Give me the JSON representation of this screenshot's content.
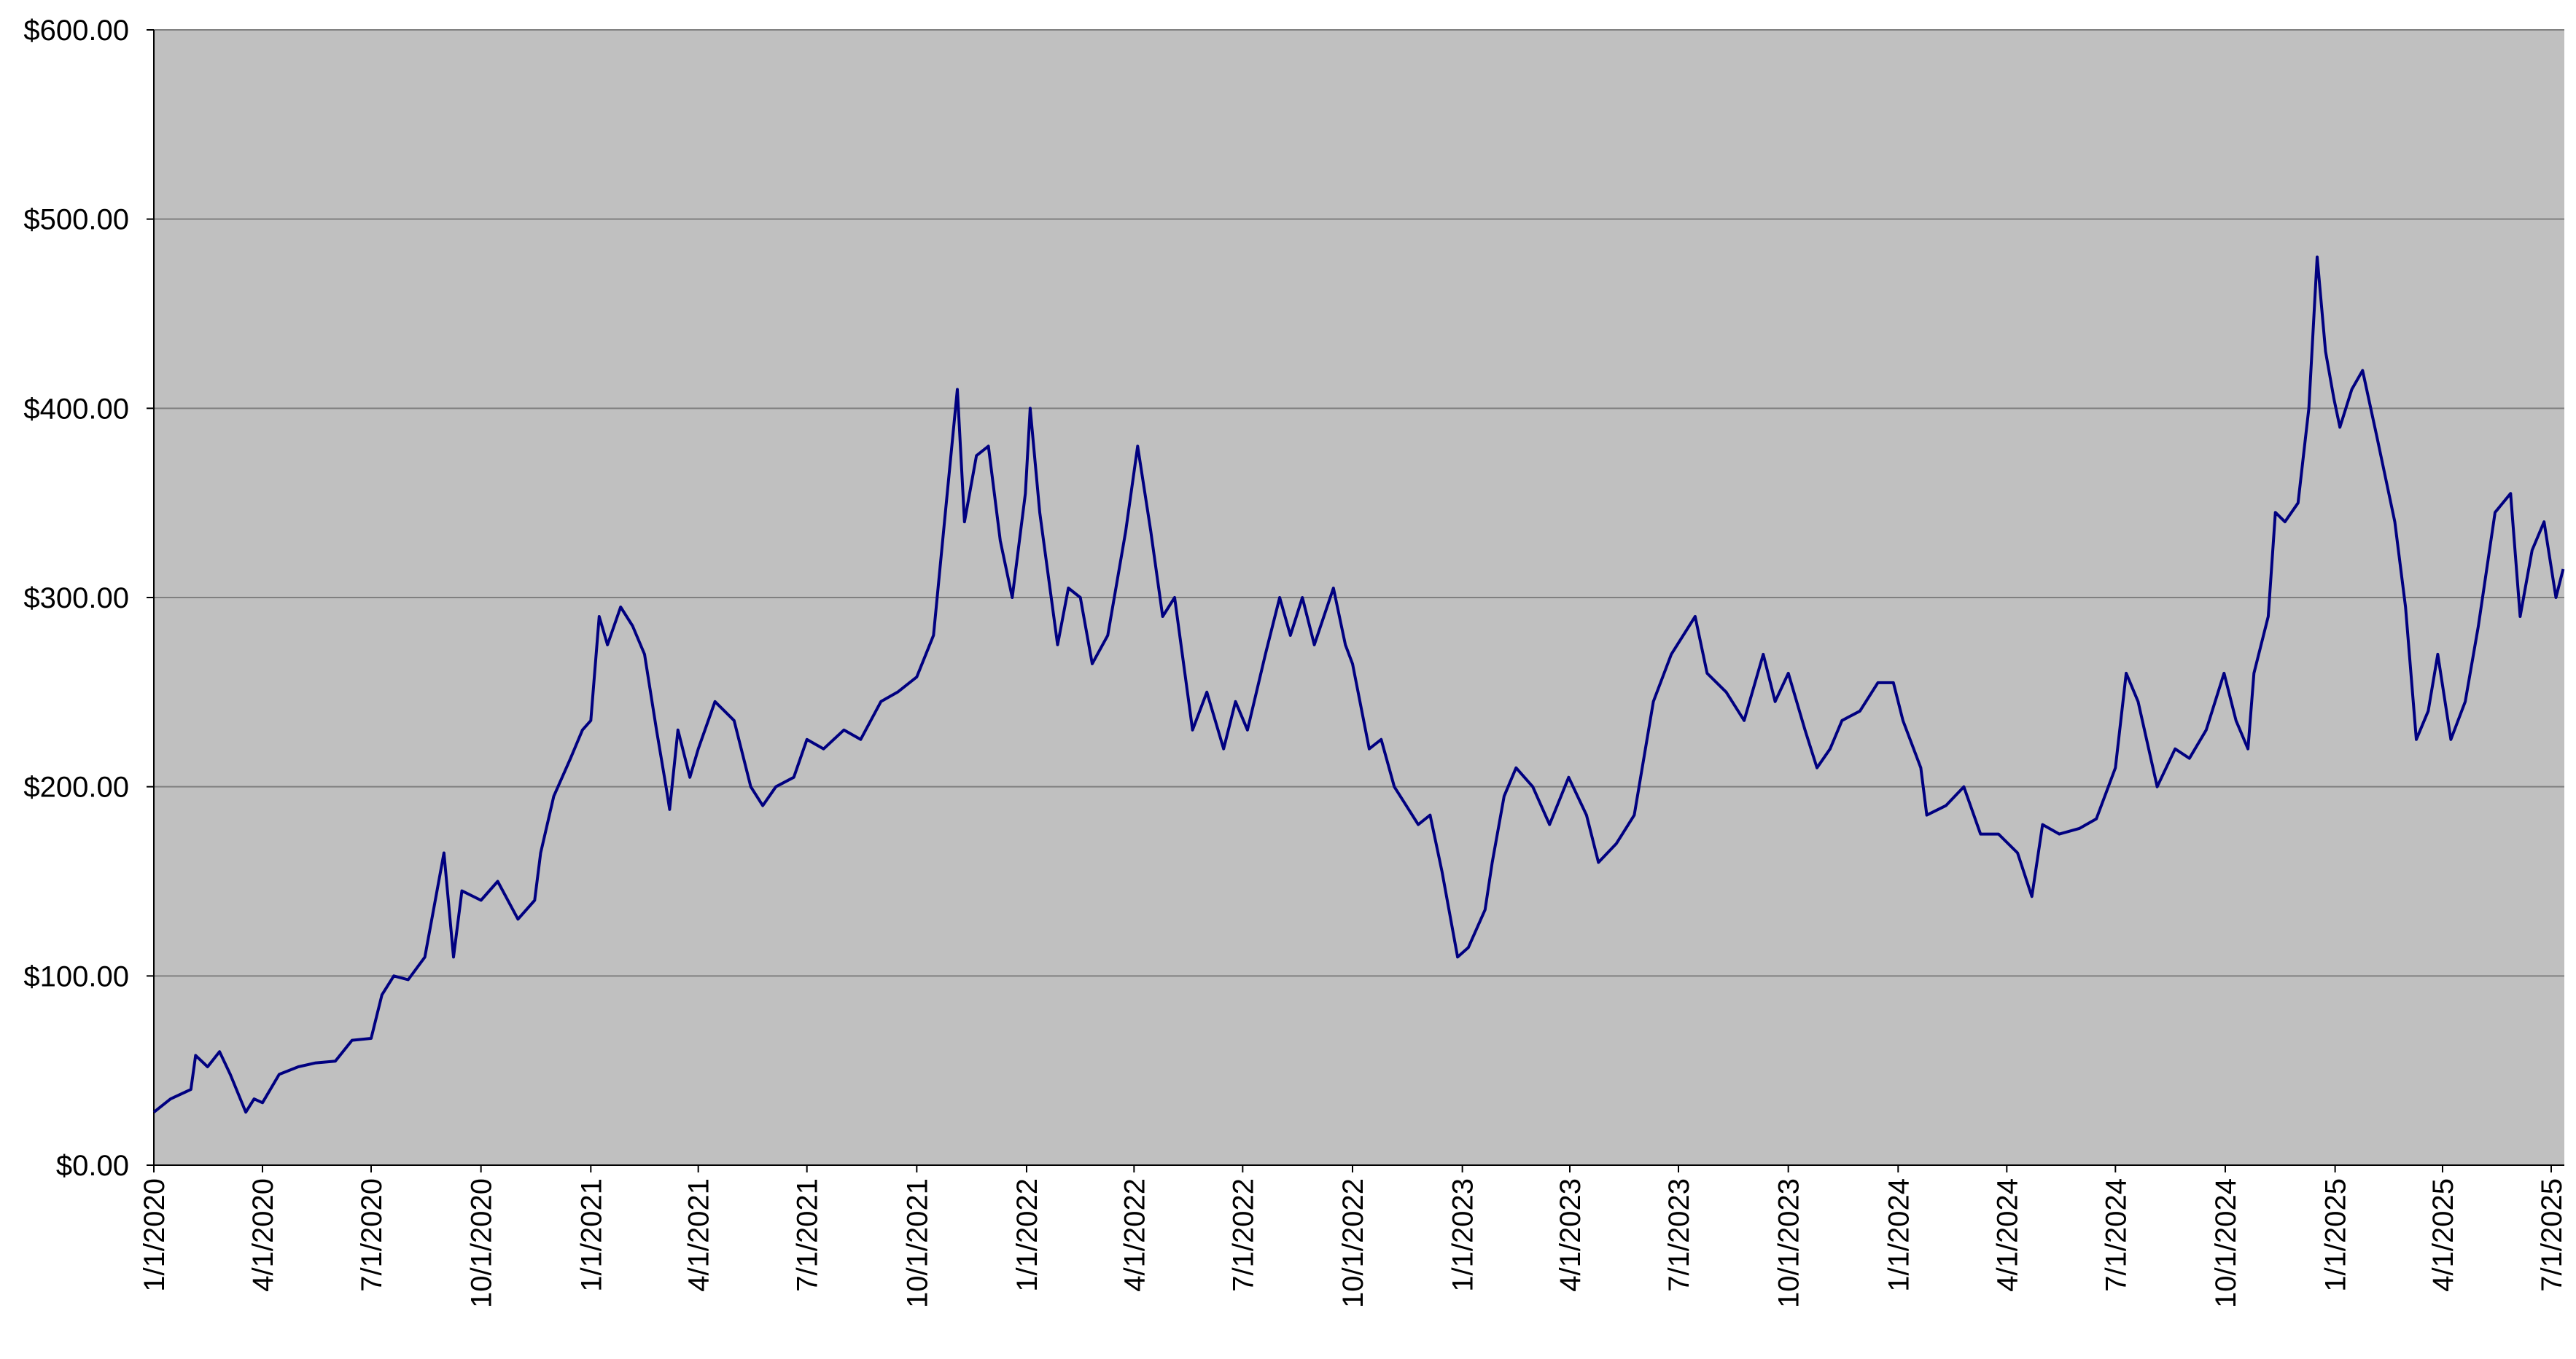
{
  "chart_data": {
    "type": "line",
    "x": [
      "2020-01-01",
      "2020-01-15",
      "2020-02-01",
      "2020-02-05",
      "2020-02-15",
      "2020-02-25",
      "2020-03-05",
      "2020-03-18",
      "2020-03-25",
      "2020-04-01",
      "2020-04-15",
      "2020-05-01",
      "2020-05-15",
      "2020-06-01",
      "2020-06-15",
      "2020-07-01",
      "2020-07-10",
      "2020-07-20",
      "2020-08-01",
      "2020-08-15",
      "2020-08-31",
      "2020-09-08",
      "2020-09-15",
      "2020-10-01",
      "2020-10-15",
      "2020-11-01",
      "2020-11-15",
      "2020-11-20",
      "2020-12-01",
      "2020-12-15",
      "2020-12-25",
      "2021-01-01",
      "2021-01-08",
      "2021-01-15",
      "2021-01-26",
      "2021-02-05",
      "2021-02-15",
      "2021-02-25",
      "2021-03-05",
      "2021-03-08",
      "2021-03-15",
      "2021-03-25",
      "2021-04-01",
      "2021-04-15",
      "2021-05-01",
      "2021-05-15",
      "2021-05-25",
      "2021-06-05",
      "2021-06-20",
      "2021-07-01",
      "2021-07-15",
      "2021-08-01",
      "2021-08-15",
      "2021-09-01",
      "2021-09-15",
      "2021-10-01",
      "2021-10-15",
      "2021-10-25",
      "2021-11-04",
      "2021-11-10",
      "2021-11-20",
      "2021-11-30",
      "2021-12-10",
      "2021-12-20",
      "2021-12-31",
      "2022-01-04",
      "2022-01-12",
      "2022-01-27",
      "2022-02-05",
      "2022-02-15",
      "2022-02-25",
      "2022-03-10",
      "2022-03-25",
      "2022-04-04",
      "2022-04-15",
      "2022-04-25",
      "2022-05-05",
      "2022-05-20",
      "2022-06-01",
      "2022-06-15",
      "2022-06-25",
      "2022-07-05",
      "2022-07-20",
      "2022-08-01",
      "2022-08-10",
      "2022-08-20",
      "2022-08-30",
      "2022-09-15",
      "2022-09-25",
      "2022-10-01",
      "2022-10-15",
      "2022-10-25",
      "2022-11-05",
      "2022-11-15",
      "2022-11-25",
      "2022-12-05",
      "2022-12-15",
      "2022-12-28",
      "2023-01-06",
      "2023-01-20",
      "2023-01-26",
      "2023-02-05",
      "2023-02-15",
      "2023-03-01",
      "2023-03-15",
      "2023-03-31",
      "2023-04-15",
      "2023-04-25",
      "2023-05-10",
      "2023-05-25",
      "2023-06-10",
      "2023-06-25",
      "2023-07-15",
      "2023-07-25",
      "2023-08-10",
      "2023-08-25",
      "2023-09-10",
      "2023-09-20",
      "2023-10-01",
      "2023-10-15",
      "2023-10-25",
      "2023-11-05",
      "2023-11-15",
      "2023-11-30",
      "2023-12-15",
      "2023-12-28",
      "2024-01-05",
      "2024-01-20",
      "2024-01-25",
      "2024-02-10",
      "2024-02-25",
      "2024-03-10",
      "2024-03-25",
      "2024-04-10",
      "2024-04-22",
      "2024-05-01",
      "2024-05-15",
      "2024-06-01",
      "2024-06-15",
      "2024-07-01",
      "2024-07-10",
      "2024-07-20",
      "2024-08-05",
      "2024-08-20",
      "2024-09-01",
      "2024-09-15",
      "2024-09-30",
      "2024-10-10",
      "2024-10-20",
      "2024-10-25",
      "2024-11-06",
      "2024-11-12",
      "2024-11-20",
      "2024-12-01",
      "2024-12-10",
      "2024-12-17",
      "2024-12-24",
      "2024-12-31",
      "2025-01-05",
      "2025-01-15",
      "2025-01-24",
      "2025-02-05",
      "2025-02-20",
      "2025-03-01",
      "2025-03-10",
      "2025-03-20",
      "2025-03-28",
      "2025-04-08",
      "2025-04-20",
      "2025-05-01",
      "2025-05-15",
      "2025-05-28",
      "2025-06-05",
      "2025-06-15",
      "2025-06-25",
      "2025-07-05",
      "2025-07-11"
    ],
    "series": [
      {
        "color": "#000080",
        "values": [
          28,
          35,
          40,
          58,
          52,
          60,
          48,
          28,
          35,
          33,
          48,
          52,
          54,
          55,
          66,
          67,
          90,
          100,
          98,
          110,
          165,
          110,
          145,
          140,
          150,
          130,
          140,
          165,
          195,
          215,
          230,
          235,
          290,
          275,
          295,
          285,
          270,
          230,
          200,
          188,
          230,
          205,
          220,
          245,
          235,
          200,
          190,
          200,
          205,
          225,
          220,
          230,
          225,
          245,
          250,
          258,
          280,
          345,
          410,
          340,
          375,
          380,
          330,
          300,
          355,
          400,
          345,
          275,
          305,
          300,
          265,
          280,
          335,
          380,
          335,
          290,
          300,
          230,
          250,
          220,
          245,
          230,
          270,
          300,
          280,
          300,
          275,
          305,
          275,
          265,
          220,
          225,
          200,
          190,
          180,
          185,
          155,
          110,
          115,
          135,
          160,
          195,
          210,
          200,
          180,
          205,
          185,
          160,
          170,
          185,
          245,
          270,
          290,
          260,
          250,
          235,
          270,
          245,
          260,
          230,
          210,
          220,
          235,
          240,
          255,
          255,
          235,
          210,
          185,
          190,
          200,
          175,
          175,
          165,
          142,
          180,
          175,
          178,
          183,
          210,
          260,
          245,
          200,
          220,
          215,
          230,
          260,
          235,
          220,
          260,
          290,
          345,
          340,
          350,
          400,
          480,
          430,
          405,
          390,
          410,
          420,
          385,
          340,
          295,
          225,
          240,
          270,
          225,
          245,
          285,
          345,
          355,
          290,
          325,
          340,
          300,
          315
        ]
      }
    ],
    "xlim": [
      "2020-01-01",
      "2025-07-12"
    ],
    "xticks": [
      {
        "value": "2020-01-01",
        "label": "1/1/2020"
      },
      {
        "value": "2020-04-01",
        "label": "4/1/2020"
      },
      {
        "value": "2020-07-01",
        "label": "7/1/2020"
      },
      {
        "value": "2020-10-01",
        "label": "10/1/2020"
      },
      {
        "value": "2021-01-01",
        "label": "1/1/2021"
      },
      {
        "value": "2021-04-01",
        "label": "4/1/2021"
      },
      {
        "value": "2021-07-01",
        "label": "7/1/2021"
      },
      {
        "value": "2021-10-01",
        "label": "10/1/2021"
      },
      {
        "value": "2022-01-01",
        "label": "1/1/2022"
      },
      {
        "value": "2022-04-01",
        "label": "4/1/2022"
      },
      {
        "value": "2022-07-01",
        "label": "7/1/2022"
      },
      {
        "value": "2022-10-01",
        "label": "10/1/2022"
      },
      {
        "value": "2023-01-01",
        "label": "1/1/2023"
      },
      {
        "value": "2023-04-01",
        "label": "4/1/2023"
      },
      {
        "value": "2023-07-01",
        "label": "7/1/2023"
      },
      {
        "value": "2023-10-01",
        "label": "10/1/2023"
      },
      {
        "value": "2024-01-01",
        "label": "1/1/2024"
      },
      {
        "value": "2024-04-01",
        "label": "4/1/2024"
      },
      {
        "value": "2024-07-01",
        "label": "7/1/2024"
      },
      {
        "value": "2024-10-01",
        "label": "10/1/2024"
      },
      {
        "value": "2025-01-01",
        "label": "1/1/2025"
      },
      {
        "value": "2025-04-01",
        "label": "4/1/2025"
      },
      {
        "value": "2025-07-01",
        "label": "7/1/2025"
      }
    ],
    "ylim": [
      0,
      600
    ],
    "yticks": [
      {
        "value": 0,
        "label": "$0.00"
      },
      {
        "value": 100,
        "label": "$100.00"
      },
      {
        "value": 200,
        "label": "$200.00"
      },
      {
        "value": 300,
        "label": "$300.00"
      },
      {
        "value": 400,
        "label": "$400.00"
      },
      {
        "value": 500,
        "label": "$500.00"
      },
      {
        "value": 600,
        "label": "$600.00"
      }
    ],
    "grid": true
  }
}
